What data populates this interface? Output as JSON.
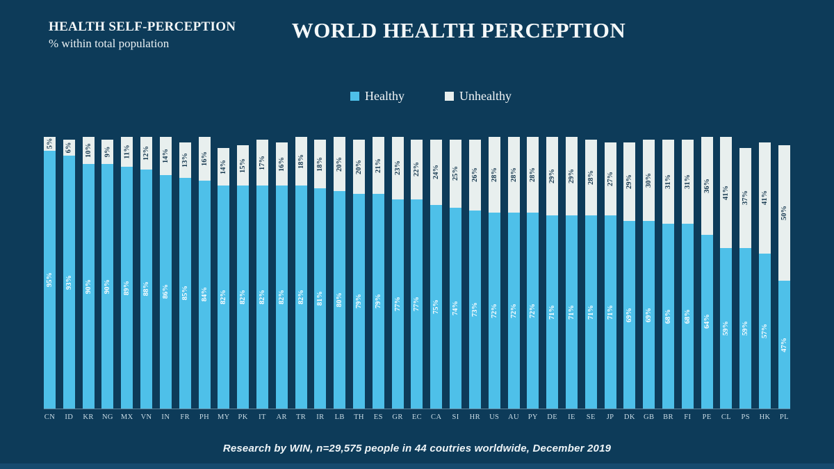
{
  "page": {
    "background": "#0d3b59",
    "accent_blue": "#4ec0e9",
    "accent_white": "#e8efee"
  },
  "header": {
    "kicker": "HEALTH SELF-PERCEPTION",
    "kicker_sub": "% within total population",
    "title": "WORLD HEALTH PERCEPTION"
  },
  "legend": {
    "items": [
      {
        "label": "Healthy",
        "color": "#4ec0e9"
      },
      {
        "label": "Unhealthy",
        "color": "#e8efee"
      }
    ]
  },
  "footer": {
    "source": "Research by WIN, n=29,575  people in 44 coutries worldwide, December 2019"
  },
  "chart_data": {
    "type": "bar",
    "stacked": true,
    "orientation": "vertical",
    "grid": false,
    "legend_position": "top-center",
    "ylim": [
      0,
      100
    ],
    "value_suffix": "%",
    "categories": [
      "CN",
      "ID",
      "KR",
      "NG",
      "MX",
      "VN",
      "IN",
      "FR",
      "PH",
      "MY",
      "PK",
      "IT",
      "AR",
      "TR",
      "IR",
      "LB",
      "TH",
      "ES",
      "GR",
      "EC",
      "CA",
      "SI",
      "HR",
      "US",
      "AU",
      "PY",
      "DE",
      "IE",
      "SE",
      "JP",
      "DK",
      "GB",
      "BR",
      "FI",
      "PE",
      "CL",
      "PS",
      "HK",
      "PL"
    ],
    "series": [
      {
        "name": "Healthy",
        "color": "#4ec0e9",
        "label_color": "#ffffff",
        "values": [
          95,
          93,
          90,
          90,
          89,
          88,
          86,
          85,
          84,
          82,
          82,
          82,
          82,
          82,
          81,
          80,
          79,
          79,
          77,
          77,
          75,
          74,
          73,
          72,
          72,
          72,
          71,
          71,
          71,
          71,
          69,
          69,
          68,
          68,
          64,
          59,
          59,
          57,
          47
        ]
      },
      {
        "name": "Unhealthy",
        "color": "#e8efee",
        "label_color": "#173950",
        "values": [
          5,
          6,
          10,
          9,
          11,
          12,
          14,
          13,
          16,
          14,
          15,
          17,
          16,
          18,
          18,
          20,
          20,
          21,
          23,
          22,
          24,
          25,
          26,
          28,
          28,
          28,
          29,
          29,
          28,
          27,
          29,
          30,
          31,
          31,
          36,
          41,
          37,
          41,
          50
        ]
      }
    ]
  }
}
